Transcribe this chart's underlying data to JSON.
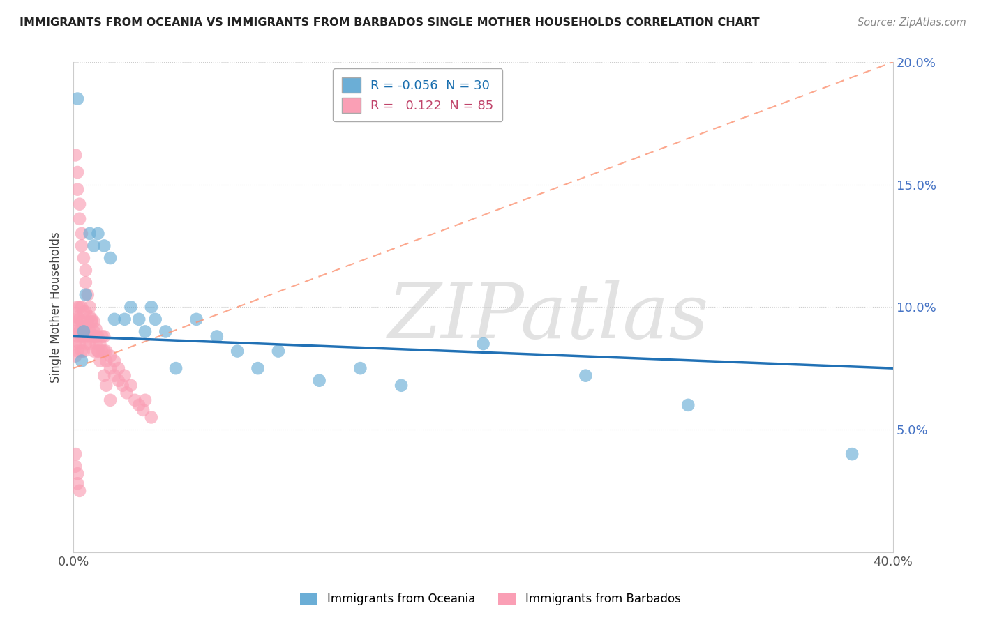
{
  "title": "IMMIGRANTS FROM OCEANIA VS IMMIGRANTS FROM BARBADOS SINGLE MOTHER HOUSEHOLDS CORRELATION CHART",
  "source": "Source: ZipAtlas.com",
  "ylabel": "Single Mother Households",
  "watermark": "ZIPatlas",
  "xlim": [
    0.0,
    0.4
  ],
  "ylim": [
    0.0,
    0.2
  ],
  "xtick_vals": [
    0.0,
    0.05,
    0.1,
    0.15,
    0.2,
    0.25,
    0.3,
    0.35,
    0.4
  ],
  "ytick_vals": [
    0.0,
    0.05,
    0.1,
    0.15,
    0.2
  ],
  "xticklabels": [
    "0.0%",
    "",
    "",
    "",
    "",
    "",
    "",
    "",
    "40.0%"
  ],
  "yticklabels": [
    "",
    "5.0%",
    "10.0%",
    "15.0%",
    "20.0%"
  ],
  "legend_r_oceania": "-0.056",
  "legend_n_oceania": "30",
  "legend_r_barbados": "0.122",
  "legend_n_barbados": "85",
  "blue_color": "#6baed6",
  "pink_color": "#fa9fb5",
  "trend_blue_color": "#2171b5",
  "trend_pink_color": "#de2d26",
  "trend_pink_dashed_color": "#fc9272",
  "oceania_x": [
    0.002,
    0.004,
    0.005,
    0.006,
    0.008,
    0.01,
    0.012,
    0.015,
    0.018,
    0.02,
    0.025,
    0.028,
    0.032,
    0.035,
    0.038,
    0.04,
    0.045,
    0.05,
    0.06,
    0.07,
    0.08,
    0.09,
    0.1,
    0.12,
    0.14,
    0.16,
    0.2,
    0.25,
    0.3,
    0.38
  ],
  "oceania_y": [
    0.185,
    0.078,
    0.09,
    0.105,
    0.13,
    0.125,
    0.13,
    0.125,
    0.12,
    0.095,
    0.095,
    0.1,
    0.095,
    0.09,
    0.1,
    0.095,
    0.09,
    0.075,
    0.095,
    0.088,
    0.082,
    0.075,
    0.082,
    0.07,
    0.075,
    0.068,
    0.085,
    0.072,
    0.06,
    0.04
  ],
  "barbados_x": [
    0.001,
    0.001,
    0.001,
    0.001,
    0.002,
    0.002,
    0.002,
    0.002,
    0.002,
    0.003,
    0.003,
    0.003,
    0.003,
    0.004,
    0.004,
    0.004,
    0.004,
    0.005,
    0.005,
    0.005,
    0.005,
    0.006,
    0.006,
    0.006,
    0.007,
    0.007,
    0.008,
    0.008,
    0.008,
    0.009,
    0.009,
    0.01,
    0.01,
    0.01,
    0.011,
    0.011,
    0.012,
    0.012,
    0.013,
    0.014,
    0.014,
    0.015,
    0.015,
    0.016,
    0.016,
    0.018,
    0.018,
    0.02,
    0.02,
    0.022,
    0.022,
    0.024,
    0.025,
    0.026,
    0.028,
    0.03,
    0.032,
    0.034,
    0.035,
    0.038,
    0.001,
    0.002,
    0.002,
    0.003,
    0.003,
    0.004,
    0.004,
    0.005,
    0.006,
    0.006,
    0.007,
    0.008,
    0.009,
    0.01,
    0.011,
    0.012,
    0.013,
    0.015,
    0.016,
    0.018,
    0.001,
    0.001,
    0.002,
    0.002,
    0.003
  ],
  "barbados_y": [
    0.08,
    0.085,
    0.09,
    0.095,
    0.082,
    0.088,
    0.092,
    0.096,
    0.1,
    0.085,
    0.09,
    0.095,
    0.1,
    0.082,
    0.088,
    0.094,
    0.1,
    0.082,
    0.088,
    0.092,
    0.098,
    0.085,
    0.092,
    0.098,
    0.088,
    0.094,
    0.085,
    0.09,
    0.096,
    0.088,
    0.094,
    0.082,
    0.088,
    0.094,
    0.085,
    0.091,
    0.082,
    0.088,
    0.085,
    0.082,
    0.088,
    0.082,
    0.088,
    0.082,
    0.078,
    0.075,
    0.08,
    0.072,
    0.078,
    0.07,
    0.075,
    0.068,
    0.072,
    0.065,
    0.068,
    0.062,
    0.06,
    0.058,
    0.062,
    0.055,
    0.162,
    0.155,
    0.148,
    0.142,
    0.136,
    0.13,
    0.125,
    0.12,
    0.115,
    0.11,
    0.105,
    0.1,
    0.095,
    0.09,
    0.088,
    0.082,
    0.078,
    0.072,
    0.068,
    0.062,
    0.04,
    0.035,
    0.032,
    0.028,
    0.025
  ],
  "trend_blue_x0": 0.0,
  "trend_blue_x1": 0.4,
  "trend_blue_y0": 0.088,
  "trend_blue_y1": 0.075,
  "trend_pink_x0": 0.0,
  "trend_pink_x1": 0.4,
  "trend_pink_y0": 0.075,
  "trend_pink_y1": 0.2
}
